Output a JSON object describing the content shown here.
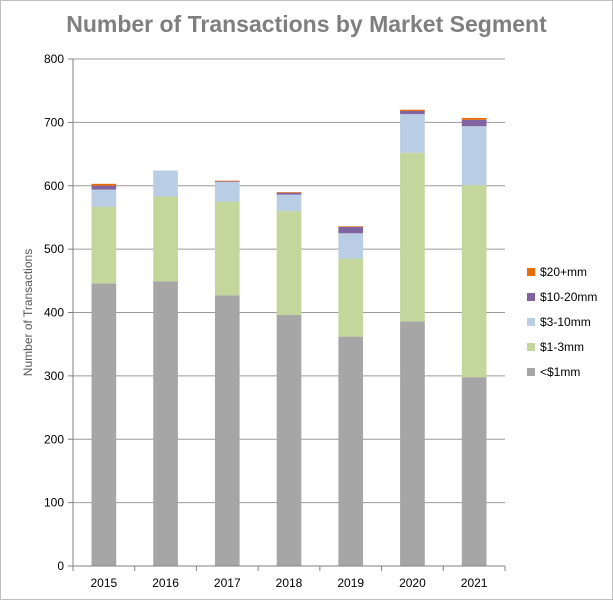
{
  "chart_data": {
    "type": "bar",
    "stacked": true,
    "title": "Number of Transactions by Market Segment",
    "xlabel": "",
    "ylabel": "Number of Transactions",
    "ylim": [
      0,
      800
    ],
    "yticks": [
      0,
      100,
      200,
      300,
      400,
      500,
      600,
      700,
      800
    ],
    "grid": true,
    "legend_position": "right",
    "categories": [
      "2015",
      "2016",
      "2017",
      "2018",
      "2019",
      "2020",
      "2021"
    ],
    "series": [
      {
        "name": "<$1mm",
        "color": "#a6a6a6",
        "values": [
          446,
          449,
          427,
          396,
          362,
          386,
          298
        ]
      },
      {
        "name": "$1-3mm",
        "color": "#c3d69b",
        "values": [
          121,
          134,
          148,
          164,
          123,
          266,
          303
        ]
      },
      {
        "name": "$3-10mm",
        "color": "#b9cde5",
        "values": [
          27,
          41,
          31,
          26,
          40,
          61,
          93
        ]
      },
      {
        "name": "$10-20mm",
        "color": "#8064a2",
        "values": [
          6,
          0,
          1,
          3,
          10,
          5,
          10
        ]
      },
      {
        "name": "$20+mm",
        "color": "#e46c0a",
        "values": [
          3,
          0,
          1,
          1,
          1,
          2,
          3
        ]
      }
    ]
  }
}
